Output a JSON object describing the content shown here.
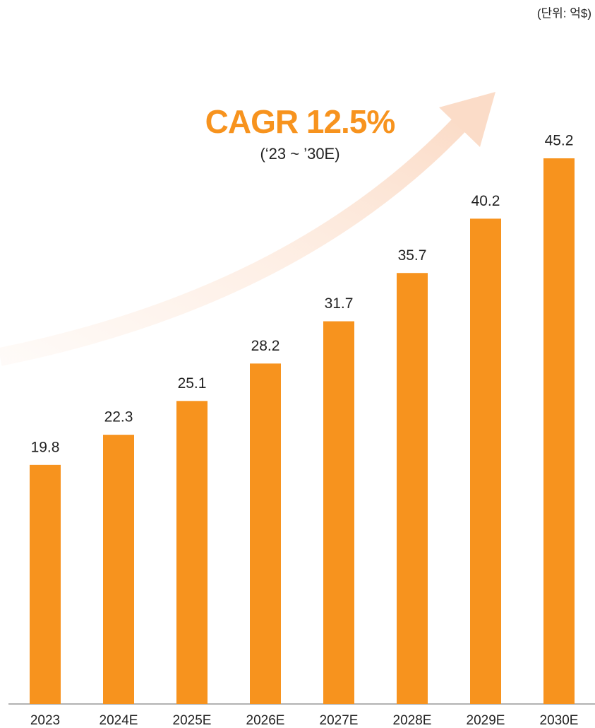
{
  "chart_data": {
    "type": "bar",
    "title": "CAGR 12.5%",
    "subtitle": "(‘23 ~ ’30E)",
    "unit_label": "(단위: 억$)",
    "categories": [
      "2023",
      "2024E",
      "2025E",
      "2026E",
      "2027E",
      "2028E",
      "2029E",
      "2030E"
    ],
    "values": [
      19.8,
      22.3,
      25.1,
      28.2,
      31.7,
      35.7,
      40.2,
      45.2
    ],
    "color": "#f7931e",
    "ylim": [
      0,
      50
    ]
  }
}
